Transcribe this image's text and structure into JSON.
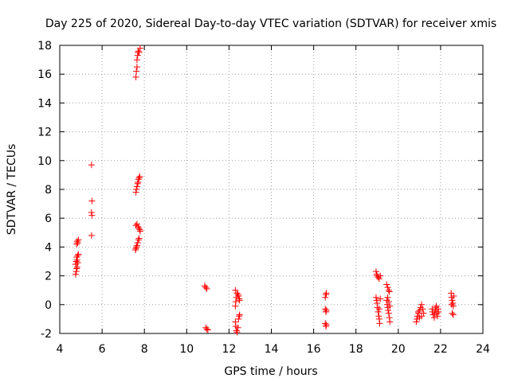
{
  "chart_data": {
    "type": "scatter",
    "title": "Day 225 of 2020, Sidereal Day-to-day VTEC variation (SDTVAR) for receiver xmis",
    "xlabel": "GPS time / hours",
    "ylabel": "SDTVAR / TECUs",
    "xlim": [
      4,
      24
    ],
    "ylim": [
      -2,
      18
    ],
    "xticks": [
      4,
      6,
      8,
      10,
      12,
      14,
      16,
      18,
      20,
      22,
      24
    ],
    "yticks": [
      -2,
      0,
      2,
      4,
      6,
      8,
      10,
      12,
      14,
      16,
      18
    ],
    "grid": true,
    "grid_style": "dotted",
    "marker": "plus",
    "color": "#ff0000",
    "series": [
      {
        "name": "SDTVAR",
        "points": [
          [
            4.75,
            2.1
          ],
          [
            4.78,
            2.3
          ],
          [
            4.8,
            2.5
          ],
          [
            4.82,
            2.6
          ],
          [
            4.75,
            2.8
          ],
          [
            4.85,
            2.9
          ],
          [
            4.78,
            3.0
          ],
          [
            4.82,
            3.1
          ],
          [
            4.8,
            3.3
          ],
          [
            4.85,
            3.4
          ],
          [
            4.88,
            3.5
          ],
          [
            4.8,
            4.2
          ],
          [
            4.85,
            4.3
          ],
          [
            4.82,
            4.4
          ],
          [
            4.88,
            4.5
          ],
          [
            5.5,
            4.8
          ],
          [
            5.52,
            6.2
          ],
          [
            5.5,
            6.4
          ],
          [
            5.52,
            7.2
          ],
          [
            5.5,
            9.7
          ],
          [
            7.58,
            3.8
          ],
          [
            7.6,
            3.9
          ],
          [
            7.62,
            4.0
          ],
          [
            7.65,
            4.1
          ],
          [
            7.68,
            4.3
          ],
          [
            7.72,
            4.5
          ],
          [
            7.75,
            4.6
          ],
          [
            7.6,
            5.5
          ],
          [
            7.65,
            5.6
          ],
          [
            7.7,
            5.4
          ],
          [
            7.75,
            5.3
          ],
          [
            7.78,
            5.2
          ],
          [
            7.8,
            5.1
          ],
          [
            7.6,
            7.8
          ],
          [
            7.62,
            8.0
          ],
          [
            7.65,
            8.2
          ],
          [
            7.68,
            8.4
          ],
          [
            7.7,
            8.5
          ],
          [
            7.72,
            8.7
          ],
          [
            7.75,
            8.8
          ],
          [
            7.78,
            8.9
          ],
          [
            7.6,
            15.8
          ],
          [
            7.62,
            16.2
          ],
          [
            7.65,
            16.5
          ],
          [
            7.65,
            17.0
          ],
          [
            7.68,
            17.3
          ],
          [
            7.7,
            17.5
          ],
          [
            7.72,
            17.6
          ],
          [
            7.75,
            17.5
          ],
          [
            7.8,
            17.8
          ],
          [
            10.85,
            1.3
          ],
          [
            10.9,
            1.2
          ],
          [
            10.95,
            1.1
          ],
          [
            10.9,
            -1.6
          ],
          [
            10.95,
            -1.7
          ],
          [
            11.0,
            -1.75
          ],
          [
            12.3,
            -0.1
          ],
          [
            12.32,
            0.2
          ],
          [
            12.35,
            0.5
          ],
          [
            12.38,
            0.8
          ],
          [
            12.3,
            1.0
          ],
          [
            12.42,
            0.7
          ],
          [
            12.45,
            0.6
          ],
          [
            12.48,
            0.4
          ],
          [
            12.5,
            0.3
          ],
          [
            12.3,
            -1.2
          ],
          [
            12.32,
            -1.5
          ],
          [
            12.35,
            -1.8
          ],
          [
            12.38,
            -1.9
          ],
          [
            12.42,
            -1.6
          ],
          [
            12.45,
            -1.0
          ],
          [
            12.48,
            -0.8
          ],
          [
            12.5,
            -0.7
          ],
          [
            16.55,
            0.5
          ],
          [
            16.58,
            0.7
          ],
          [
            16.6,
            0.8
          ],
          [
            16.55,
            -0.3
          ],
          [
            16.58,
            -0.5
          ],
          [
            16.6,
            -0.4
          ],
          [
            16.55,
            -1.3
          ],
          [
            16.58,
            -1.5
          ],
          [
            16.6,
            -1.4
          ],
          [
            18.95,
            2.3
          ],
          [
            18.98,
            2.1
          ],
          [
            19.0,
            2.0
          ],
          [
            19.05,
            1.9
          ],
          [
            19.1,
            1.8
          ],
          [
            19.15,
            2.0
          ],
          [
            18.95,
            0.5
          ],
          [
            18.98,
            0.3
          ],
          [
            19.0,
            0.1
          ],
          [
            19.02,
            -0.2
          ],
          [
            19.05,
            -0.5
          ],
          [
            19.08,
            -0.8
          ],
          [
            19.1,
            -1.0
          ],
          [
            19.12,
            -1.3
          ],
          [
            19.15,
            0.4
          ],
          [
            19.1,
            -0.3
          ],
          [
            19.45,
            1.4
          ],
          [
            19.5,
            1.2
          ],
          [
            19.55,
            1.0
          ],
          [
            19.58,
            0.9
          ],
          [
            19.45,
            0.3
          ],
          [
            19.48,
            0.0
          ],
          [
            19.5,
            -0.2
          ],
          [
            19.52,
            -0.4
          ],
          [
            19.55,
            -0.6
          ],
          [
            19.58,
            -0.9
          ],
          [
            19.6,
            -1.2
          ],
          [
            19.5,
            0.5
          ],
          [
            19.55,
            0.2
          ],
          [
            19.6,
            -0.1
          ],
          [
            20.85,
            -1.2
          ],
          [
            20.88,
            -1.0
          ],
          [
            20.9,
            -0.8
          ],
          [
            20.95,
            -0.6
          ],
          [
            21.0,
            -0.4
          ],
          [
            21.05,
            -0.2
          ],
          [
            21.1,
            0.0
          ],
          [
            21.15,
            -0.3
          ],
          [
            21.2,
            -0.6
          ],
          [
            21.0,
            -0.9
          ],
          [
            20.95,
            -0.5
          ],
          [
            21.1,
            -0.8
          ],
          [
            21.6,
            -0.3
          ],
          [
            21.62,
            -0.5
          ],
          [
            21.65,
            -0.7
          ],
          [
            21.7,
            -0.9
          ],
          [
            21.72,
            -0.6
          ],
          [
            21.75,
            -0.4
          ],
          [
            21.78,
            -0.2
          ],
          [
            21.8,
            -0.1
          ],
          [
            21.82,
            -0.6
          ],
          [
            21.85,
            -0.8
          ],
          [
            21.88,
            -0.3
          ],
          [
            21.9,
            -0.5
          ],
          [
            22.5,
            0.8
          ],
          [
            22.52,
            0.5
          ],
          [
            22.55,
            0.3
          ],
          [
            22.58,
            0.1
          ],
          [
            22.6,
            -0.1
          ],
          [
            22.62,
            0.6
          ],
          [
            22.55,
            -0.6
          ],
          [
            22.6,
            -0.7
          ],
          [
            22.52,
            0.0
          ]
        ]
      }
    ]
  }
}
